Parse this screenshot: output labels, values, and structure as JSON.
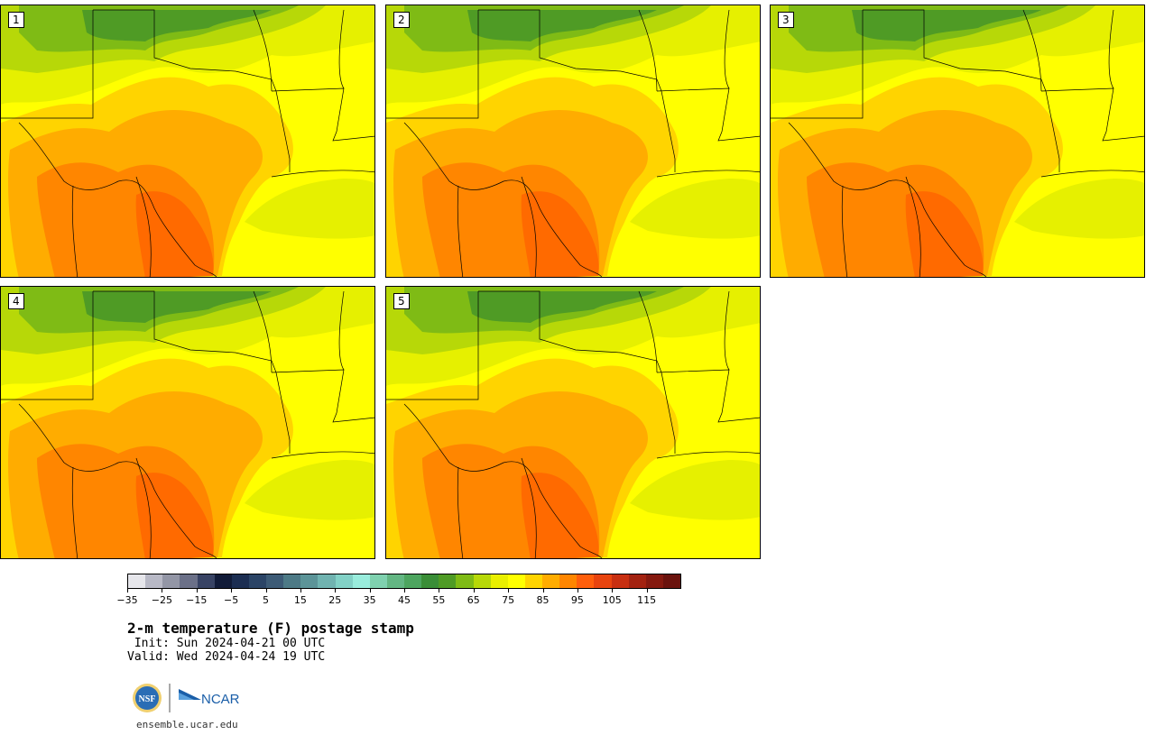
{
  "panels": [
    {
      "label": "1"
    },
    {
      "label": "2"
    },
    {
      "label": "3"
    },
    {
      "label": "4"
    },
    {
      "label": "5"
    }
  ],
  "colorbar": {
    "colors": [
      "#e6e6eb",
      "#b8b9c6",
      "#9396a6",
      "#6b7088",
      "#384364",
      "#111b38",
      "#1c2e52",
      "#2b4466",
      "#3d5b76",
      "#4d7a86",
      "#5c9498",
      "#70b3b0",
      "#82d1c6",
      "#99ecdc",
      "#7fd1af",
      "#63b683",
      "#4da55f",
      "#3a8e37",
      "#4f9b25",
      "#7fbb15",
      "#b7d808",
      "#e9ef00",
      "#ffff00",
      "#ffd400",
      "#ffac00",
      "#ff8600",
      "#ff5f0c",
      "#e8440f",
      "#c82f11",
      "#a32210",
      "#85190f",
      "#6a120d"
    ],
    "ticks": [
      "−35",
      "−25",
      "−15",
      "−5",
      "5",
      "15",
      "25",
      "35",
      "45",
      "55",
      "65",
      "75",
      "85",
      "95",
      "105",
      "115"
    ]
  },
  "title": "2-m temperature (F) postage stamp",
  "init": " Init: Sun 2024-04-21 00 UTC",
  "valid": "Valid: Wed 2024-04-24 19 UTC",
  "logos": {
    "nsf": "NSF",
    "ncar": "NCAR"
  },
  "url": "ensemble.ucar.edu"
}
